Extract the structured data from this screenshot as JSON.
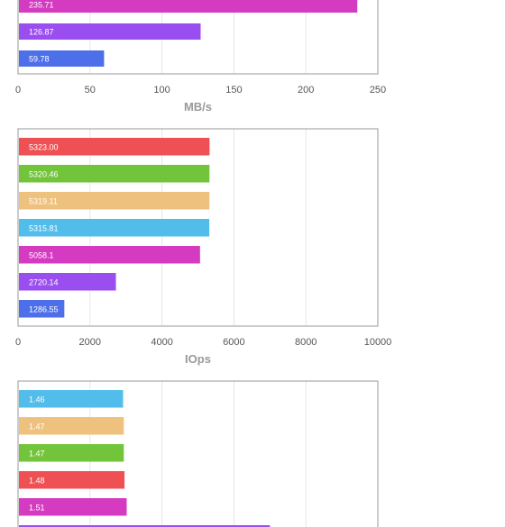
{
  "chart_data": [
    {
      "type": "bar",
      "orientation": "horizontal",
      "xlabel": "MB/s",
      "xlim": [
        0,
        250
      ],
      "xticks": [
        0,
        50,
        100,
        150,
        200,
        250
      ],
      "bars": [
        {
          "value": 235.71,
          "label": "235.71",
          "color": "#d43bc1"
        },
        {
          "value": 126.87,
          "label": "126.87",
          "color": "#9b4ef0"
        },
        {
          "value": 59.78,
          "label": "59.78",
          "color": "#4d6fea"
        }
      ]
    },
    {
      "type": "bar",
      "orientation": "horizontal",
      "xlabel": "IOps",
      "xlim": [
        0,
        10000
      ],
      "xticks": [
        0,
        2000,
        4000,
        6000,
        8000,
        10000
      ],
      "bars": [
        {
          "value": 5323.0,
          "label": "5323.00",
          "color": "#ee5053"
        },
        {
          "value": 5320.46,
          "label": "5320.46",
          "color": "#72c43a"
        },
        {
          "value": 5319.11,
          "label": "5319.11",
          "color": "#eec27e"
        },
        {
          "value": 5315.81,
          "label": "5315.81",
          "color": "#52bdeb"
        },
        {
          "value": 5058.1,
          "label": "5058.1",
          "color": "#d43bc1"
        },
        {
          "value": 2720.14,
          "label": "2720.14",
          "color": "#9b4ef0"
        },
        {
          "value": 1286.55,
          "label": "1286.55",
          "color": "#4d6fea"
        }
      ]
    },
    {
      "type": "bar",
      "orientation": "horizontal",
      "xlim": [
        0,
        5
      ],
      "bars": [
        {
          "value": 1.46,
          "label": "1.46",
          "color": "#52bdeb"
        },
        {
          "value": 1.47,
          "label": "1.47",
          "color": "#eec27e"
        },
        {
          "value": 1.47,
          "label": "1.47",
          "color": "#72c43a"
        },
        {
          "value": 1.48,
          "label": "1.48",
          "color": "#ee5053"
        },
        {
          "value": 1.51,
          "label": "1.51",
          "color": "#d43bc1"
        },
        {
          "value": 3.5,
          "label": "",
          "color": "#9b4ef0"
        }
      ]
    }
  ]
}
